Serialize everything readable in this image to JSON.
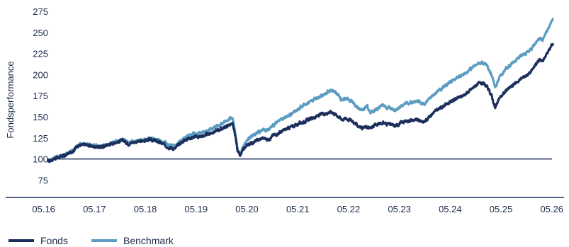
{
  "colors": {
    "fonds": "#1c2f5c",
    "benchmark": "#5b9cc0",
    "axis": "#1c2f5c",
    "text": "#1b2a4a"
  },
  "chart_data": {
    "type": "line",
    "title": "",
    "xlabel": "",
    "ylabel": "Fondsperformance",
    "ylim": [
      62,
      280
    ],
    "xlim": [
      2016.38,
      2026.42
    ],
    "y_ticks": [
      "275",
      "250",
      "225",
      "200",
      "175",
      "150",
      "125",
      "100",
      "75"
    ],
    "x_ticks": [
      "05.16",
      "05.17",
      "05.18",
      "05.19",
      "05.20",
      "05.21",
      "05.22",
      "05.23",
      "05.24",
      "05.25",
      "05.26"
    ],
    "baseline": 100,
    "grid": false,
    "legend": "bottom-left",
    "series": [
      {
        "name": "Fonds",
        "points": [
          [
            2016.42,
            97
          ],
          [
            2016.55,
            101
          ],
          [
            2016.75,
            104
          ],
          [
            2016.92,
            110
          ],
          [
            2017.0,
            116
          ],
          [
            2017.15,
            117
          ],
          [
            2017.3,
            115
          ],
          [
            2017.45,
            114
          ],
          [
            2017.6,
            117
          ],
          [
            2017.75,
            120
          ],
          [
            2017.9,
            122
          ],
          [
            2018.0,
            118
          ],
          [
            2018.1,
            120
          ],
          [
            2018.25,
            121
          ],
          [
            2018.4,
            123
          ],
          [
            2018.5,
            122
          ],
          [
            2018.6,
            120
          ],
          [
            2018.8,
            114
          ],
          [
            2018.92,
            112
          ],
          [
            2019.0,
            118
          ],
          [
            2019.15,
            124
          ],
          [
            2019.3,
            126
          ],
          [
            2019.45,
            127
          ],
          [
            2019.6,
            130
          ],
          [
            2019.75,
            134
          ],
          [
            2019.88,
            137
          ],
          [
            2020.0,
            141
          ],
          [
            2020.05,
            141
          ],
          [
            2020.1,
            128
          ],
          [
            2020.15,
            110
          ],
          [
            2020.2,
            103
          ],
          [
            2020.25,
            110
          ],
          [
            2020.35,
            117
          ],
          [
            2020.5,
            121
          ],
          [
            2020.65,
            125
          ],
          [
            2020.75,
            123
          ],
          [
            2020.85,
            128
          ],
          [
            2021.0,
            132
          ],
          [
            2021.2,
            138
          ],
          [
            2021.4,
            143
          ],
          [
            2021.6,
            148
          ],
          [
            2021.8,
            153
          ],
          [
            2022.0,
            156
          ],
          [
            2022.1,
            152
          ],
          [
            2022.2,
            147
          ],
          [
            2022.3,
            148
          ],
          [
            2022.4,
            145
          ],
          [
            2022.5,
            140
          ],
          [
            2022.6,
            137
          ],
          [
            2022.7,
            138
          ],
          [
            2022.75,
            136
          ],
          [
            2022.85,
            140
          ],
          [
            2023.0,
            143
          ],
          [
            2023.15,
            141
          ],
          [
            2023.25,
            139
          ],
          [
            2023.4,
            144
          ],
          [
            2023.55,
            146
          ],
          [
            2023.7,
            146
          ],
          [
            2023.82,
            144
          ],
          [
            2024.0,
            155
          ],
          [
            2024.2,
            163
          ],
          [
            2024.4,
            170
          ],
          [
            2024.55,
            174
          ],
          [
            2024.7,
            180
          ],
          [
            2024.85,
            188
          ],
          [
            2024.95,
            190
          ],
          [
            2025.05,
            186
          ],
          [
            2025.15,
            175
          ],
          [
            2025.22,
            160
          ],
          [
            2025.3,
            172
          ],
          [
            2025.45,
            182
          ],
          [
            2025.6,
            189
          ],
          [
            2025.75,
            196
          ],
          [
            2025.9,
            202
          ],
          [
            2026.0,
            210
          ],
          [
            2026.1,
            219
          ],
          [
            2026.15,
            215
          ],
          [
            2026.2,
            222
          ],
          [
            2026.27,
            228
          ],
          [
            2026.32,
            234
          ],
          [
            2026.36,
            237
          ]
        ]
      },
      {
        "name": "Benchmark",
        "points": [
          [
            2016.42,
            97
          ],
          [
            2016.55,
            102
          ],
          [
            2016.75,
            105
          ],
          [
            2016.92,
            111
          ],
          [
            2017.0,
            117
          ],
          [
            2017.15,
            118
          ],
          [
            2017.3,
            116
          ],
          [
            2017.45,
            115
          ],
          [
            2017.6,
            118
          ],
          [
            2017.75,
            121
          ],
          [
            2017.9,
            123
          ],
          [
            2018.0,
            119
          ],
          [
            2018.1,
            121
          ],
          [
            2018.25,
            122
          ],
          [
            2018.4,
            124
          ],
          [
            2018.5,
            123
          ],
          [
            2018.6,
            122
          ],
          [
            2018.8,
            117
          ],
          [
            2018.92,
            115
          ],
          [
            2019.0,
            121
          ],
          [
            2019.15,
            127
          ],
          [
            2019.3,
            130
          ],
          [
            2019.45,
            131
          ],
          [
            2019.6,
            135
          ],
          [
            2019.75,
            139
          ],
          [
            2019.88,
            143
          ],
          [
            2020.0,
            148
          ],
          [
            2020.05,
            148
          ],
          [
            2020.1,
            132
          ],
          [
            2020.15,
            112
          ],
          [
            2020.2,
            104
          ],
          [
            2020.25,
            114
          ],
          [
            2020.35,
            123
          ],
          [
            2020.5,
            130
          ],
          [
            2020.65,
            135
          ],
          [
            2020.75,
            134
          ],
          [
            2020.85,
            140
          ],
          [
            2021.0,
            146
          ],
          [
            2021.2,
            153
          ],
          [
            2021.4,
            162
          ],
          [
            2021.6,
            169
          ],
          [
            2021.8,
            175
          ],
          [
            2022.0,
            182
          ],
          [
            2022.1,
            178
          ],
          [
            2022.2,
            170
          ],
          [
            2022.3,
            172
          ],
          [
            2022.4,
            168
          ],
          [
            2022.5,
            162
          ],
          [
            2022.6,
            158
          ],
          [
            2022.7,
            162
          ],
          [
            2022.75,
            155
          ],
          [
            2022.85,
            158
          ],
          [
            2023.0,
            163
          ],
          [
            2023.15,
            161
          ],
          [
            2023.25,
            158
          ],
          [
            2023.4,
            164
          ],
          [
            2023.55,
            167
          ],
          [
            2023.7,
            168
          ],
          [
            2023.82,
            165
          ],
          [
            2024.0,
            176
          ],
          [
            2024.2,
            185
          ],
          [
            2024.4,
            194
          ],
          [
            2024.55,
            199
          ],
          [
            2024.7,
            205
          ],
          [
            2024.85,
            212
          ],
          [
            2024.95,
            215
          ],
          [
            2025.05,
            211
          ],
          [
            2025.15,
            200
          ],
          [
            2025.22,
            185
          ],
          [
            2025.3,
            197
          ],
          [
            2025.45,
            208
          ],
          [
            2025.6,
            216
          ],
          [
            2025.75,
            223
          ],
          [
            2025.9,
            228
          ],
          [
            2026.0,
            236
          ],
          [
            2026.1,
            244
          ],
          [
            2026.15,
            240
          ],
          [
            2026.2,
            247
          ],
          [
            2026.27,
            255
          ],
          [
            2026.32,
            262
          ],
          [
            2026.36,
            267
          ]
        ]
      }
    ]
  }
}
